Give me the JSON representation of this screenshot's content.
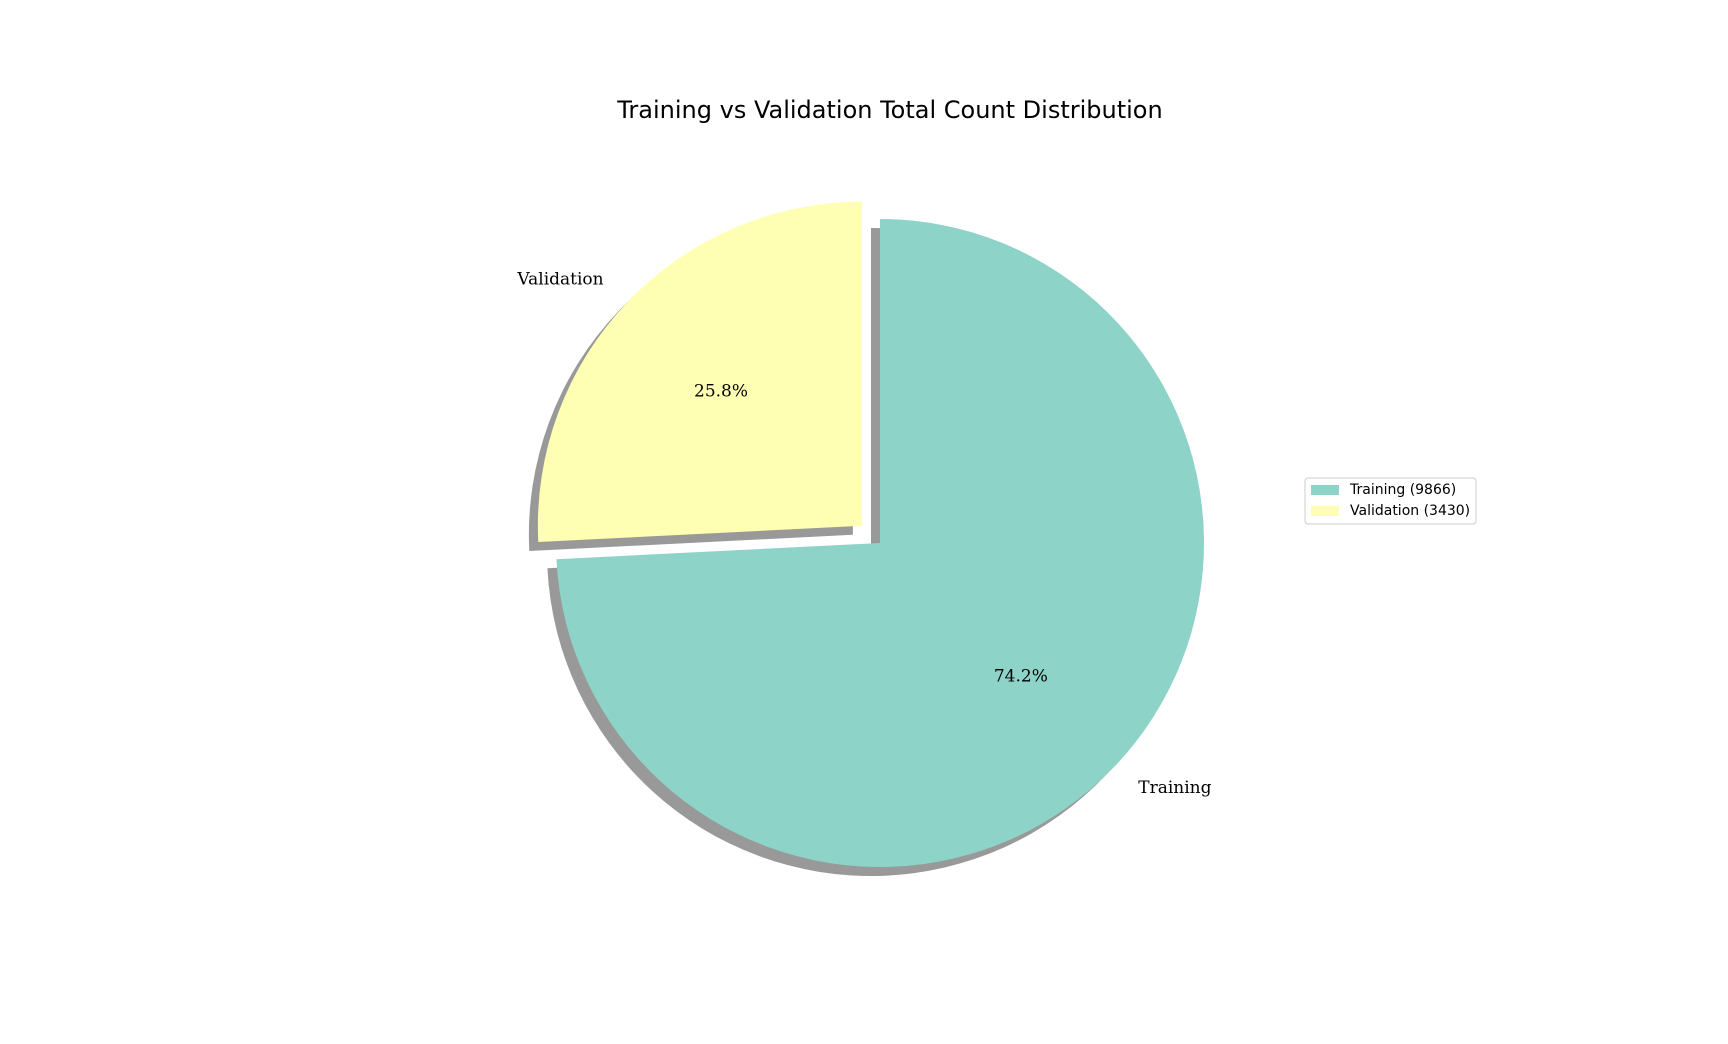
{
  "chart_data": {
    "type": "pie",
    "title": "Training vs Validation Total Count Distribution",
    "slices": [
      {
        "label": "Training",
        "value": 9866,
        "percent_label": "74.2%",
        "legend_label": "Training (9866)",
        "color": "#8dd3c7",
        "exploded": false
      },
      {
        "label": "Validation",
        "value": 3430,
        "percent_label": "25.8%",
        "legend_label": "Validation (3430)",
        "color": "#ffffb3",
        "exploded": true
      }
    ],
    "start_angle_deg": 90,
    "direction": "clockwise",
    "shadow": true,
    "legend_position": "right"
  }
}
